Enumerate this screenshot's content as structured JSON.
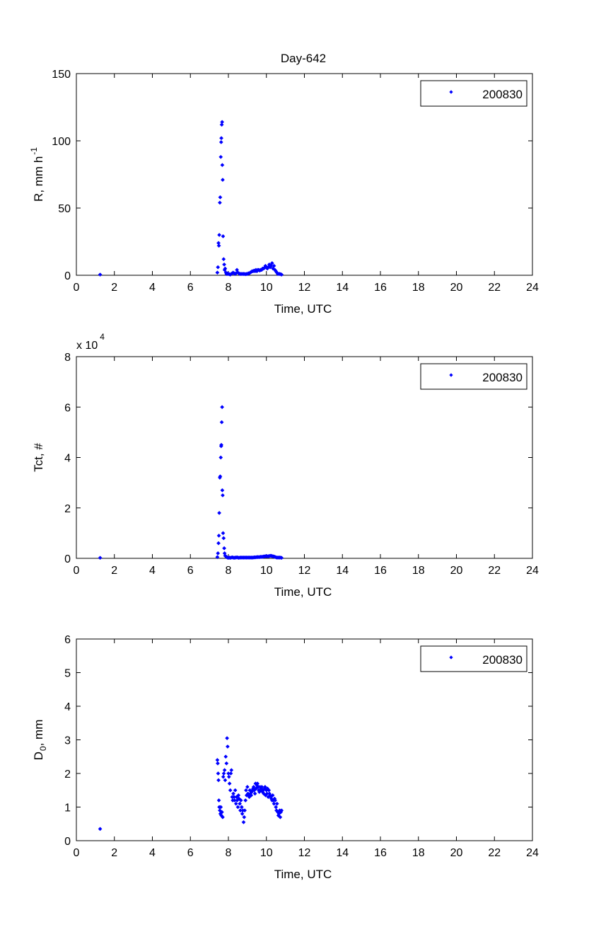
{
  "figure": {
    "title": "Day-642"
  },
  "chart_data": [
    {
      "type": "scatter",
      "title": "Day-642",
      "xlabel": "Time, UTC",
      "ylabel_main": "R, mm h",
      "ylabel_sup": "-1",
      "xlim": [
        0,
        24
      ],
      "ylim": [
        0,
        150
      ],
      "xticks": [
        "0",
        "2",
        "4",
        "6",
        "8",
        "10",
        "12",
        "14",
        "16",
        "18",
        "20",
        "22",
        "24"
      ],
      "yticks": [
        "0",
        "50",
        "100",
        "150"
      ],
      "exponent_base": "",
      "exponent_power": "",
      "grid": false,
      "legend_position": "top-right",
      "series": [
        {
          "name": "200830",
          "color": "#0000ff",
          "x": [
            1.25,
            7.42,
            7.45,
            7.48,
            7.5,
            7.52,
            7.55,
            7.57,
            7.6,
            7.62,
            7.63,
            7.65,
            7.67,
            7.68,
            7.7,
            7.72,
            7.75,
            7.78,
            7.8,
            7.83,
            7.87,
            7.9,
            7.93,
            7.97,
            8.0,
            8.05,
            8.1,
            8.15,
            8.2,
            8.25,
            8.3,
            8.35,
            8.4,
            8.45,
            8.5,
            8.55,
            8.6,
            8.65,
            8.7,
            8.75,
            8.8,
            8.85,
            8.9,
            8.95,
            9.0,
            9.05,
            9.1,
            9.15,
            9.2,
            9.25,
            9.3,
            9.35,
            9.4,
            9.45,
            9.5,
            9.55,
            9.6,
            9.65,
            9.7,
            9.75,
            9.8,
            9.85,
            9.9,
            9.95,
            10.0,
            10.05,
            10.1,
            10.15,
            10.2,
            10.25,
            10.3,
            10.35,
            10.4,
            10.45,
            10.5,
            10.55,
            10.6,
            10.65,
            10.7,
            10.75,
            10.8
          ],
          "y": [
            0.5,
            2,
            6,
            24,
            22,
            30,
            54,
            58,
            88,
            99,
            102,
            112,
            114,
            82,
            71,
            29,
            12,
            8,
            4,
            5,
            2,
            1,
            1,
            1.5,
            1,
            0.8,
            0.5,
            1,
            1.5,
            2,
            1.5,
            1,
            1.5,
            4,
            2,
            1.5,
            1,
            1,
            1,
            1,
            1,
            1,
            0.8,
            1,
            1,
            1.5,
            1.5,
            2,
            2.5,
            3,
            3,
            3.5,
            3,
            4,
            3,
            4,
            4,
            3.5,
            4,
            4,
            5,
            5,
            5.5,
            7,
            6,
            5,
            6,
            8,
            6,
            7,
            9,
            5,
            7,
            4,
            3,
            2,
            1,
            1,
            1,
            0.8,
            0.5
          ]
        }
      ]
    },
    {
      "type": "scatter",
      "title": "",
      "xlabel": "Time, UTC",
      "ylabel_main": "Tct, #",
      "ylabel_sup": "",
      "xlim": [
        0,
        24
      ],
      "ylim": [
        0,
        80000
      ],
      "xticks": [
        "0",
        "2",
        "4",
        "6",
        "8",
        "10",
        "12",
        "14",
        "16",
        "18",
        "20",
        "22",
        "24"
      ],
      "yticks": [
        "0",
        "2",
        "4",
        "6",
        "8"
      ],
      "exponent_base": "x 10",
      "exponent_power": "4",
      "grid": false,
      "legend_position": "top-right",
      "series": [
        {
          "name": "200830",
          "color": "#0000ff",
          "x": [
            1.25,
            7.42,
            7.45,
            7.48,
            7.5,
            7.52,
            7.55,
            7.57,
            7.6,
            7.62,
            7.63,
            7.65,
            7.67,
            7.68,
            7.7,
            7.72,
            7.75,
            7.78,
            7.8,
            7.83,
            7.87,
            7.9,
            7.95,
            8.0,
            8.05,
            8.1,
            8.15,
            8.2,
            8.25,
            8.3,
            8.35,
            8.4,
            8.45,
            8.5,
            8.55,
            8.6,
            8.65,
            8.7,
            8.75,
            8.8,
            8.85,
            8.9,
            8.95,
            9.0,
            9.05,
            9.1,
            9.15,
            9.2,
            9.25,
            9.3,
            9.35,
            9.4,
            9.45,
            9.5,
            9.55,
            9.6,
            9.65,
            9.7,
            9.75,
            9.8,
            9.85,
            9.9,
            9.95,
            10.0,
            10.05,
            10.1,
            10.15,
            10.2,
            10.25,
            10.3,
            10.35,
            10.4,
            10.45,
            10.5,
            10.55,
            10.6,
            10.65,
            10.7,
            10.75,
            10.8
          ],
          "y": [
            200,
            500,
            2000,
            6000,
            9000,
            18000,
            32000,
            32500,
            40000,
            44500,
            45000,
            54000,
            60000,
            27000,
            25000,
            10000,
            8000,
            4000,
            2000,
            1000,
            800,
            500,
            300,
            200,
            300,
            200,
            300,
            400,
            300,
            200,
            300,
            300,
            400,
            300,
            200,
            300,
            300,
            300,
            300,
            300,
            300,
            300,
            300,
            300,
            300,
            300,
            300,
            300,
            300,
            300,
            400,
            400,
            400,
            500,
            500,
            500,
            500,
            600,
            600,
            600,
            700,
            800,
            800,
            900,
            800,
            800,
            900,
            1000,
            1000,
            900,
            800,
            700,
            600,
            400,
            300,
            300,
            300,
            300,
            300,
            200
          ]
        }
      ]
    },
    {
      "type": "scatter",
      "title": "",
      "xlabel": "Time, UTC",
      "ylabel_main": "D",
      "ylabel_sub": "0",
      "ylabel_tail": ", mm",
      "xlim": [
        0,
        24
      ],
      "ylim": [
        0,
        6
      ],
      "xticks": [
        "0",
        "2",
        "4",
        "6",
        "8",
        "10",
        "12",
        "14",
        "16",
        "18",
        "20",
        "22",
        "24"
      ],
      "yticks": [
        "0",
        "1",
        "2",
        "3",
        "4",
        "5",
        "6"
      ],
      "exponent_base": "",
      "exponent_power": "",
      "grid": false,
      "legend_position": "top-right",
      "series": [
        {
          "name": "200830",
          "color": "#0000ff",
          "x": [
            1.25,
            7.42,
            7.44,
            7.46,
            7.48,
            7.5,
            7.52,
            7.55,
            7.58,
            7.6,
            7.63,
            7.66,
            7.7,
            7.73,
            7.76,
            7.8,
            7.83,
            7.86,
            7.9,
            7.93,
            7.96,
            8.0,
            8.03,
            8.06,
            8.1,
            8.13,
            8.16,
            8.2,
            8.23,
            8.26,
            8.3,
            8.33,
            8.36,
            8.4,
            8.43,
            8.46,
            8.5,
            8.53,
            8.56,
            8.6,
            8.63,
            8.66,
            8.7,
            8.73,
            8.76,
            8.8,
            8.83,
            8.86,
            8.9,
            8.93,
            8.96,
            9.0,
            9.03,
            9.06,
            9.1,
            9.13,
            9.16,
            9.2,
            9.23,
            9.26,
            9.3,
            9.33,
            9.36,
            9.4,
            9.43,
            9.46,
            9.5,
            9.53,
            9.56,
            9.6,
            9.63,
            9.66,
            9.7,
            9.73,
            9.76,
            9.8,
            9.83,
            9.86,
            9.9,
            9.93,
            9.96,
            10.0,
            10.03,
            10.06,
            10.1,
            10.13,
            10.16,
            10.2,
            10.23,
            10.26,
            10.3,
            10.33,
            10.36,
            10.4,
            10.43,
            10.46,
            10.5,
            10.53,
            10.56,
            10.6,
            10.63,
            10.66,
            10.7,
            10.73,
            10.76,
            10.8
          ],
          "y": [
            0.35,
            2.4,
            2.3,
            2.0,
            1.8,
            1.2,
            1.0,
            0.9,
            0.8,
            1.0,
            0.75,
            0.85,
            0.7,
            1.9,
            2.0,
            2.1,
            1.8,
            2.5,
            2.3,
            3.05,
            2.8,
            2.0,
            1.9,
            1.7,
            1.5,
            2.0,
            2.1,
            1.3,
            1.2,
            1.4,
            1.3,
            1.2,
            1.5,
            1.1,
            1.3,
            1.2,
            1.0,
            1.35,
            1.25,
            1.1,
            0.9,
            1.2,
            1.0,
            0.8,
            0.9,
            0.55,
            0.7,
            0.9,
            1.2,
            1.5,
            1.35,
            1.6,
            1.4,
            1.35,
            1.3,
            1.5,
            1.4,
            1.35,
            1.45,
            1.5,
            1.55,
            1.6,
            1.5,
            1.4,
            1.7,
            1.55,
            1.65,
            1.7,
            1.6,
            1.5,
            1.45,
            1.6,
            1.5,
            1.55,
            1.6,
            1.45,
            1.5,
            1.4,
            1.55,
            1.6,
            1.35,
            1.5,
            1.4,
            1.55,
            1.3,
            1.5,
            1.4,
            1.35,
            1.3,
            1.25,
            1.2,
            1.35,
            1.2,
            1.1,
            1.25,
            1.2,
            1.0,
            0.9,
            1.1,
            0.85,
            0.75,
            0.8,
            0.9,
            0.7,
            0.85,
            0.9
          ]
        }
      ]
    }
  ]
}
